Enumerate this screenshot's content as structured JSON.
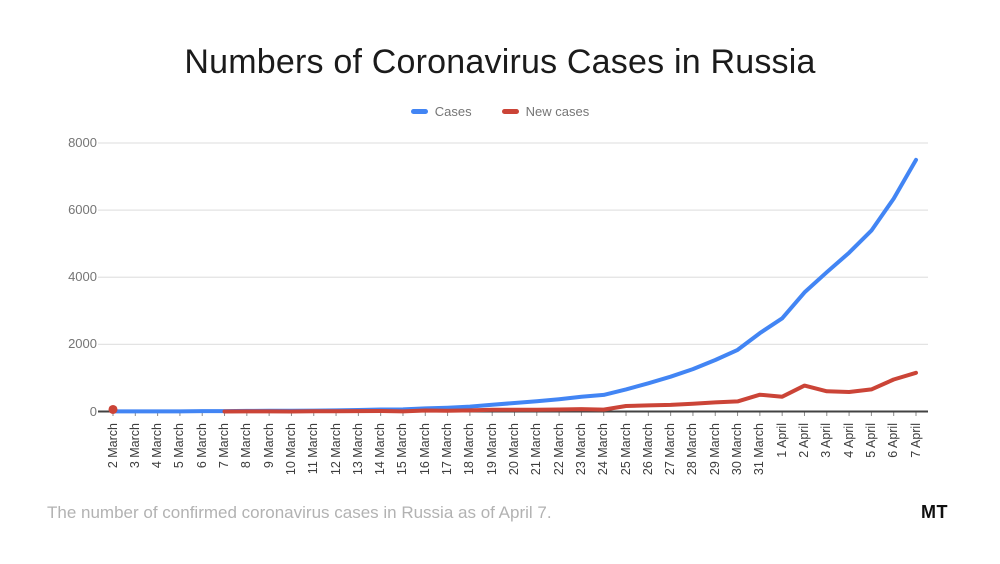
{
  "chart_data": {
    "type": "line",
    "title": "Numbers of Coronavirus Cases in Russia",
    "categories": [
      "2 March",
      "3 March",
      "4 March",
      "5 March",
      "6 March",
      "7 March",
      "8 March",
      "9 March",
      "10 March",
      "11 March",
      "12 March",
      "13 March",
      "14 March",
      "15 March",
      "16 March",
      "17 March",
      "18 March",
      "19 March",
      "20 March",
      "21 March",
      "22 March",
      "23 March",
      "24 March",
      "25 March",
      "26 March",
      "27 March",
      "28 March",
      "29 March",
      "30 March",
      "31 March",
      "1 April",
      "2 April",
      "3 April",
      "4 April",
      "5 April",
      "6 April",
      "7 April"
    ],
    "series": [
      {
        "name": "Cases",
        "color": "#4285f4",
        "values": [
          3,
          3,
          3,
          4,
          13,
          13,
          17,
          20,
          20,
          28,
          34,
          45,
          59,
          63,
          93,
          114,
          147,
          199,
          253,
          306,
          367,
          438,
          495,
          658,
          840,
          1036,
          1264,
          1534,
          1836,
          2337,
          2777,
          3548,
          4149,
          4731,
          5389,
          6343,
          7497
        ]
      },
      {
        "name": "New cases",
        "color": "#cb4437",
        "values": [
          1,
          null,
          null,
          null,
          null,
          0,
          4,
          3,
          0,
          8,
          6,
          11,
          14,
          4,
          30,
          21,
          33,
          52,
          54,
          53,
          61,
          71,
          57,
          163,
          182,
          196,
          228,
          270,
          302,
          501,
          440,
          771,
          601,
          582,
          658,
          954,
          1154
        ]
      }
    ],
    "ylim": [
      0,
      8000
    ],
    "yticks": [
      0,
      2000,
      4000,
      6000,
      8000
    ],
    "grid": true,
    "legend_position": "top",
    "x_label_rotation": -90,
    "axis_color": "#424242",
    "grid_color": "#e3e3e3",
    "tick_color": "#8a8a8a"
  },
  "caption": {
    "text": "The number of confirmed coronavirus cases in Russia as of April 7.",
    "logo": "MT"
  }
}
